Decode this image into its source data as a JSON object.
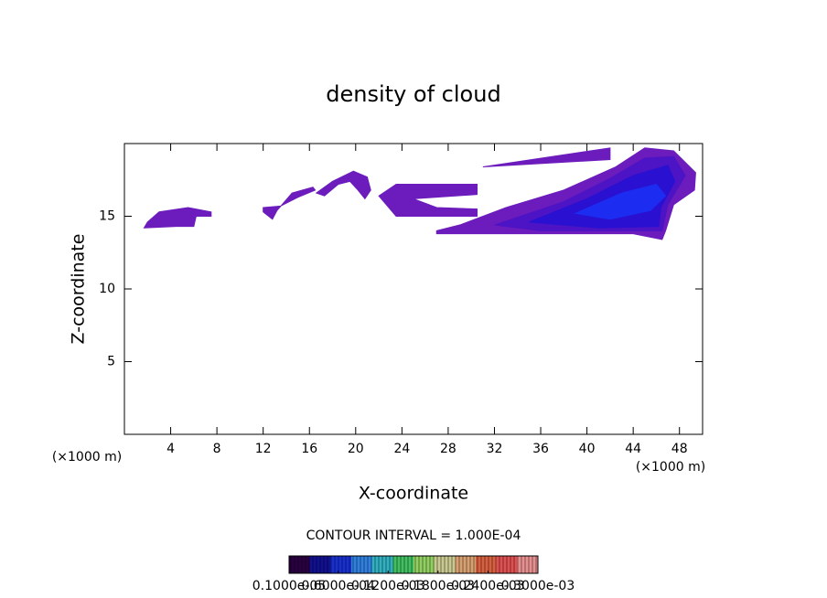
{
  "chart_data": {
    "type": "contour",
    "title": "density of cloud",
    "xlabel": "X-coordinate",
    "ylabel": "Z-coordinate",
    "x_unit": "(×1000 m)",
    "x_unit_right": "(×1000 m)",
    "annotation": "CONTOUR INTERVAL = 1.000E-04",
    "xlim": [
      0,
      50
    ],
    "ylim": [
      0,
      20
    ],
    "xticks": [
      4,
      8,
      12,
      16,
      20,
      24,
      28,
      32,
      36,
      40,
      44,
      48
    ],
    "yticks": [
      5,
      10,
      15
    ],
    "regions": [
      {
        "color": "#6c1cbc",
        "x": [
          1.7,
          4.5,
          6.0,
          6.2,
          7.5,
          7.5,
          5.5,
          3.0,
          2.0
        ],
        "y": [
          14.2,
          14.3,
          14.3,
          15.0,
          15.0,
          15.3,
          15.6,
          15.3,
          14.6
        ]
      },
      {
        "color": "#6c1cbc",
        "x": [
          12.0,
          13.5,
          15.0,
          16.5,
          16.3,
          14.5,
          13.2,
          12.8,
          12.0
        ],
        "y": [
          15.6,
          15.7,
          16.3,
          16.8,
          17.0,
          16.6,
          15.4,
          14.8,
          15.3
        ]
      },
      {
        "color": "#6c1cbc",
        "x": [
          16.6,
          18.0,
          19.8,
          21.0,
          21.3,
          20.8,
          20.2,
          19.5,
          18.5,
          17.3
        ],
        "y": [
          16.6,
          17.4,
          18.1,
          17.7,
          16.8,
          16.2,
          16.8,
          17.4,
          17.2,
          16.4
        ]
      },
      {
        "color": "#6c1cbc",
        "x": [
          22.0,
          23.5,
          30.5,
          30.5,
          25.0,
          27.0,
          30.5,
          30.5,
          23.5
        ],
        "y": [
          16.4,
          17.2,
          17.2,
          16.5,
          16.2,
          15.6,
          15.5,
          15.0,
          15.0
        ]
      },
      {
        "color": "#6c1cbc",
        "x": [
          27.0,
          29.0,
          33.0,
          38.0,
          42.5,
          45.0,
          47.5,
          49.4,
          49.3,
          47.5,
          46.8,
          46.5,
          44.0,
          40.0,
          35.0,
          31.0,
          27.0
        ],
        "y": [
          14.0,
          14.4,
          15.6,
          16.8,
          18.4,
          19.7,
          19.5,
          18.0,
          16.8,
          15.8,
          14.0,
          13.4,
          13.8,
          13.8,
          13.8,
          13.8,
          13.8
        ]
      },
      {
        "color": "#6c1cbc",
        "x": [
          31.0,
          42.0,
          42.0,
          31.0
        ],
        "y": [
          18.4,
          19.7,
          18.9,
          18.4
        ]
      },
      {
        "color": "#4c14c4",
        "x": [
          32.0,
          38.0,
          42.0,
          45.0,
          47.5,
          48.5,
          47.0,
          46.5,
          42.0,
          36.0
        ],
        "y": [
          14.4,
          16.0,
          17.6,
          19.0,
          19.1,
          17.8,
          15.8,
          14.0,
          14.0,
          14.0
        ]
      },
      {
        "color": "#2a10d0",
        "x": [
          35.0,
          40.0,
          44.0,
          47.0,
          47.6,
          46.4,
          46.2,
          41.0
        ],
        "y": [
          14.6,
          16.2,
          17.8,
          18.5,
          17.4,
          15.6,
          14.3,
          14.2
        ]
      },
      {
        "color": "#1c2cf0",
        "x": [
          39.0,
          43.0,
          46.0,
          46.8,
          45.5,
          42.0
        ],
        "y": [
          15.2,
          16.6,
          17.2,
          16.4,
          15.4,
          14.8
        ]
      }
    ],
    "colorbar": {
      "lim": [
        1e-06,
        0.0003
      ],
      "colors": [
        "#2a0040",
        "#101090",
        "#1830d0",
        "#3080e0",
        "#30b0c0",
        "#40c060",
        "#90d060",
        "#c8c890",
        "#d8a070",
        "#d86040",
        "#e05050",
        "#e89090"
      ],
      "ticks": [
        {
          "value": 1e-06,
          "label": "0.1000e-05"
        },
        {
          "value": 6e-05,
          "label": "0.6000e-04"
        },
        {
          "value": 0.00012,
          "label": "0.1200e-03"
        },
        {
          "value": 0.00018,
          "label": "0.1800e-03"
        },
        {
          "value": 0.00024,
          "label": "0.2400e-03"
        },
        {
          "value": 0.0003,
          "label": "0.3000e-03"
        }
      ]
    }
  }
}
